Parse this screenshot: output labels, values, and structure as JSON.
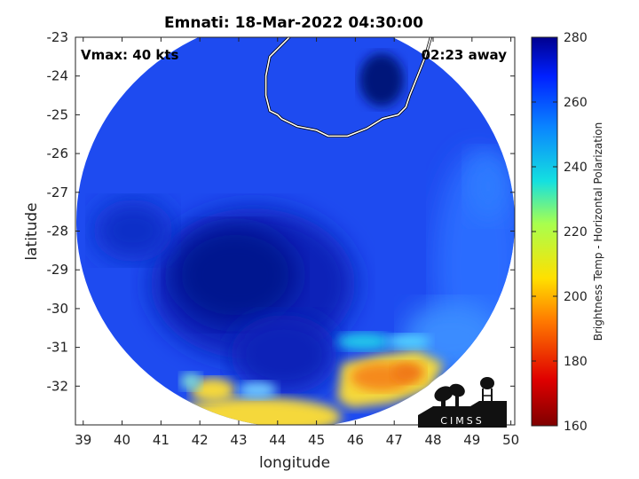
{
  "figure": {
    "title": "Emnati: 18-Mar-2022 04:30:00",
    "vmax_text": "Vmax: 40 kts",
    "away_text": "02:23 away",
    "xlabel": "longitude",
    "ylabel": "latitude",
    "colorbar_label": "Brightness Temp - Horizontal Polarization",
    "logo_text": "CIMSS"
  },
  "chart_data": {
    "type": "heatmap",
    "title": "Emnati: 18-Mar-2022 04:30:00",
    "xlabel": "longitude",
    "ylabel": "latitude",
    "xlim": [
      38.8,
      50.1
    ],
    "ylim": [
      -33.0,
      -23.0
    ],
    "x_ticks": [
      "39",
      "40",
      "41",
      "42",
      "43",
      "44",
      "45",
      "46",
      "47",
      "48",
      "49",
      "50"
    ],
    "y_ticks": [
      "-23",
      "-24",
      "-25",
      "-26",
      "-27",
      "-28",
      "-29",
      "-30",
      "-31",
      "-32"
    ],
    "colorbar": {
      "label": "Brightness Temp - Horizontal Polarization",
      "range": [
        160,
        280
      ],
      "ticks": [
        "280",
        "260",
        "240",
        "220",
        "200",
        "180",
        "160"
      ]
    },
    "annotations": [
      "Vmax: 40 kts",
      "02:23 away"
    ],
    "coastline": {
      "lon": [
        44.5,
        44.3,
        43.8,
        43.7,
        43.7,
        43.8,
        44.0,
        44.1,
        44.5,
        45.0,
        45.3,
        45.8,
        46.3,
        46.7,
        47.1,
        47.3,
        47.4,
        47.6,
        47.8,
        48.0
      ],
      "lat": [
        -22.5,
        -23.0,
        -23.5,
        -24.0,
        -24.5,
        -24.9,
        -25.0,
        -25.1,
        -25.3,
        -25.4,
        -25.55,
        -25.55,
        -25.35,
        -25.1,
        -25.0,
        -24.8,
        -24.5,
        -24.0,
        -23.5,
        -22.8
      ]
    }
  },
  "colors": {
    "cold_core": "#05198f",
    "background_blue": "#1e4bf0",
    "warm_edge": "#f5d83a",
    "hot_patch": "#f58a1e"
  }
}
